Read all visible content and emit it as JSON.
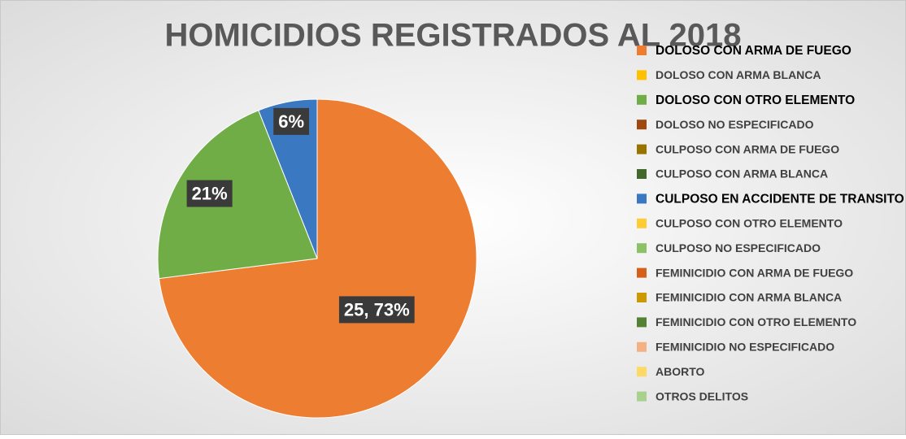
{
  "chart_data": {
    "type": "pie",
    "title": "HOMICIDIOS REGISTRADOS AL 2018",
    "categories": [
      "DOLOSO CON ARMA DE FUEGO",
      "DOLOSO CON ARMA BLANCA",
      "DOLOSO CON OTRO ELEMENTO",
      "DOLOSO NO ESPECIFICADO",
      "CULPOSO CON ARMA DE FUEGO",
      "CULPOSO CON ARMA BLANCA",
      "CULPOSO EN ACCIDENTE DE TRANSITO",
      "CULPOSO CON OTRO ELEMENTO",
      "CULPOSO NO ESPECIFICADO",
      "FEMINICIDIO CON ARMA DE FUEGO",
      "FEMINICIDIO CON ARMA BLANCA",
      "FEMINICIDIO CON OTRO ELEMENTO",
      "FEMINICIDIO NO ESPECIFICADO",
      "ABORTO",
      "OTROS DELITOS"
    ],
    "values": [
      73,
      0,
      21,
      0,
      0,
      0,
      6,
      0,
      0,
      0,
      0,
      0,
      0,
      0,
      0
    ],
    "value_labels": [
      "25, 73%",
      null,
      "21%",
      null,
      null,
      null,
      "6%",
      null,
      null,
      null,
      null,
      null,
      null,
      null,
      null
    ],
    "colors": [
      "#ED7D31",
      "#FFC000",
      "#70AD47",
      "#9E480E",
      "#997300",
      "#43682B",
      "#3A78C2",
      "#FFCD33",
      "#8CC168",
      "#D5601C",
      "#CC9A00",
      "#548235",
      "#F4B183",
      "#FFD966",
      "#A9D18E"
    ],
    "legend": "right"
  }
}
